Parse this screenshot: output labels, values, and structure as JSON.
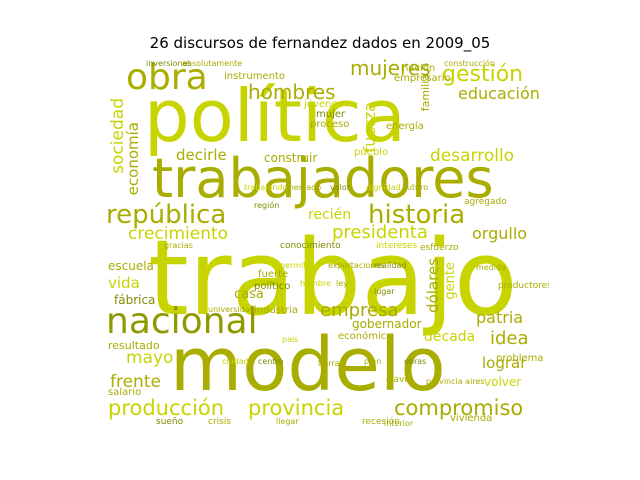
{
  "title": "26 discursos de fernandez dados en 2009_05",
  "colors": {
    "light": "#c8d400",
    "mid": "#a8ad00",
    "dark": "#7f8a00"
  },
  "words": [
    "trabajo",
    "modelo",
    "política",
    "trabajadores",
    "nacional",
    "obra",
    "república",
    "historia",
    "producción",
    "provincia",
    "compromiso",
    "gestión",
    "mujeres",
    "hombres",
    "educación",
    "desarrollo",
    "crecimiento",
    "presidenta",
    "orgullo",
    "decirle",
    "empresa",
    "patria",
    "idea",
    "frente",
    "mayo",
    "década",
    "lograr",
    "recién",
    "sociedad",
    "economía",
    "fuerza",
    "dólares",
    "gente",
    "vida",
    "escuela",
    "fábrica",
    "casa",
    "construir",
    "gobernador",
    "volver",
    "problema",
    "resultado",
    "salario",
    "instrumento",
    "empresario",
    "jóvenes",
    "proceso",
    "energía",
    "mujer",
    "pueblo",
    "nación",
    "absolutamente",
    "inversiones",
    "construcción",
    "trabajando",
    "industria",
    "familia",
    "clave",
    "fuerte",
    "político",
    "económico",
    "vivienda",
    "crisis",
    "recesión",
    "sueño",
    "productores",
    "esfuerzo",
    "intereses",
    "conocimiento",
    "interior",
    "llegar",
    "agregado",
    "medida",
    "universidad",
    "provincia aires",
    "gracias",
    "mercado",
    "valor",
    "dignidad",
    "futuro",
    "región",
    "permitido",
    "exportaciones",
    "realidad",
    "hombre",
    "ley",
    "lugar",
    "país",
    "tierra",
    "centro",
    "ciudad",
    "plan",
    "obras"
  ]
}
